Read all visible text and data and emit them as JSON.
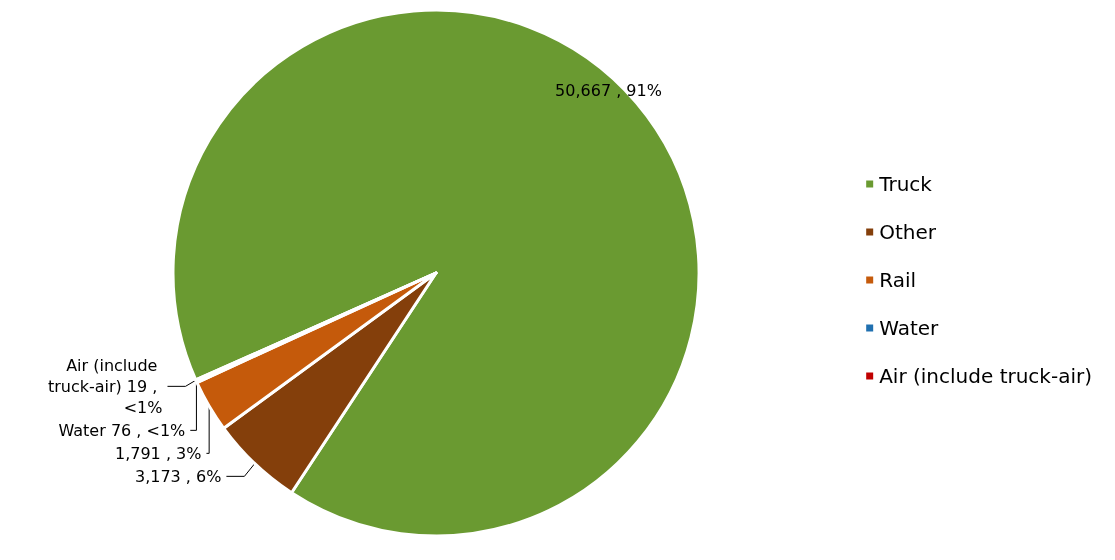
{
  "chart_data": {
    "type": "pie",
    "categories": [
      "Truck",
      "Other",
      "Rail",
      "Water",
      "Air (include truck-air)"
    ],
    "values": [
      50667,
      3173,
      1791,
      76,
      19
    ],
    "colors": [
      "#6a9a31",
      "#843f0b",
      "#c55a0b",
      "#2070b0",
      "#c00000"
    ],
    "value_labels": [
      "50,667 , 91%",
      "3,173 , 6%",
      "1,791 , 3%",
      "Water 76 , <1%",
      "Air (include truck-air) 19 , <1%"
    ],
    "legend": "right"
  }
}
